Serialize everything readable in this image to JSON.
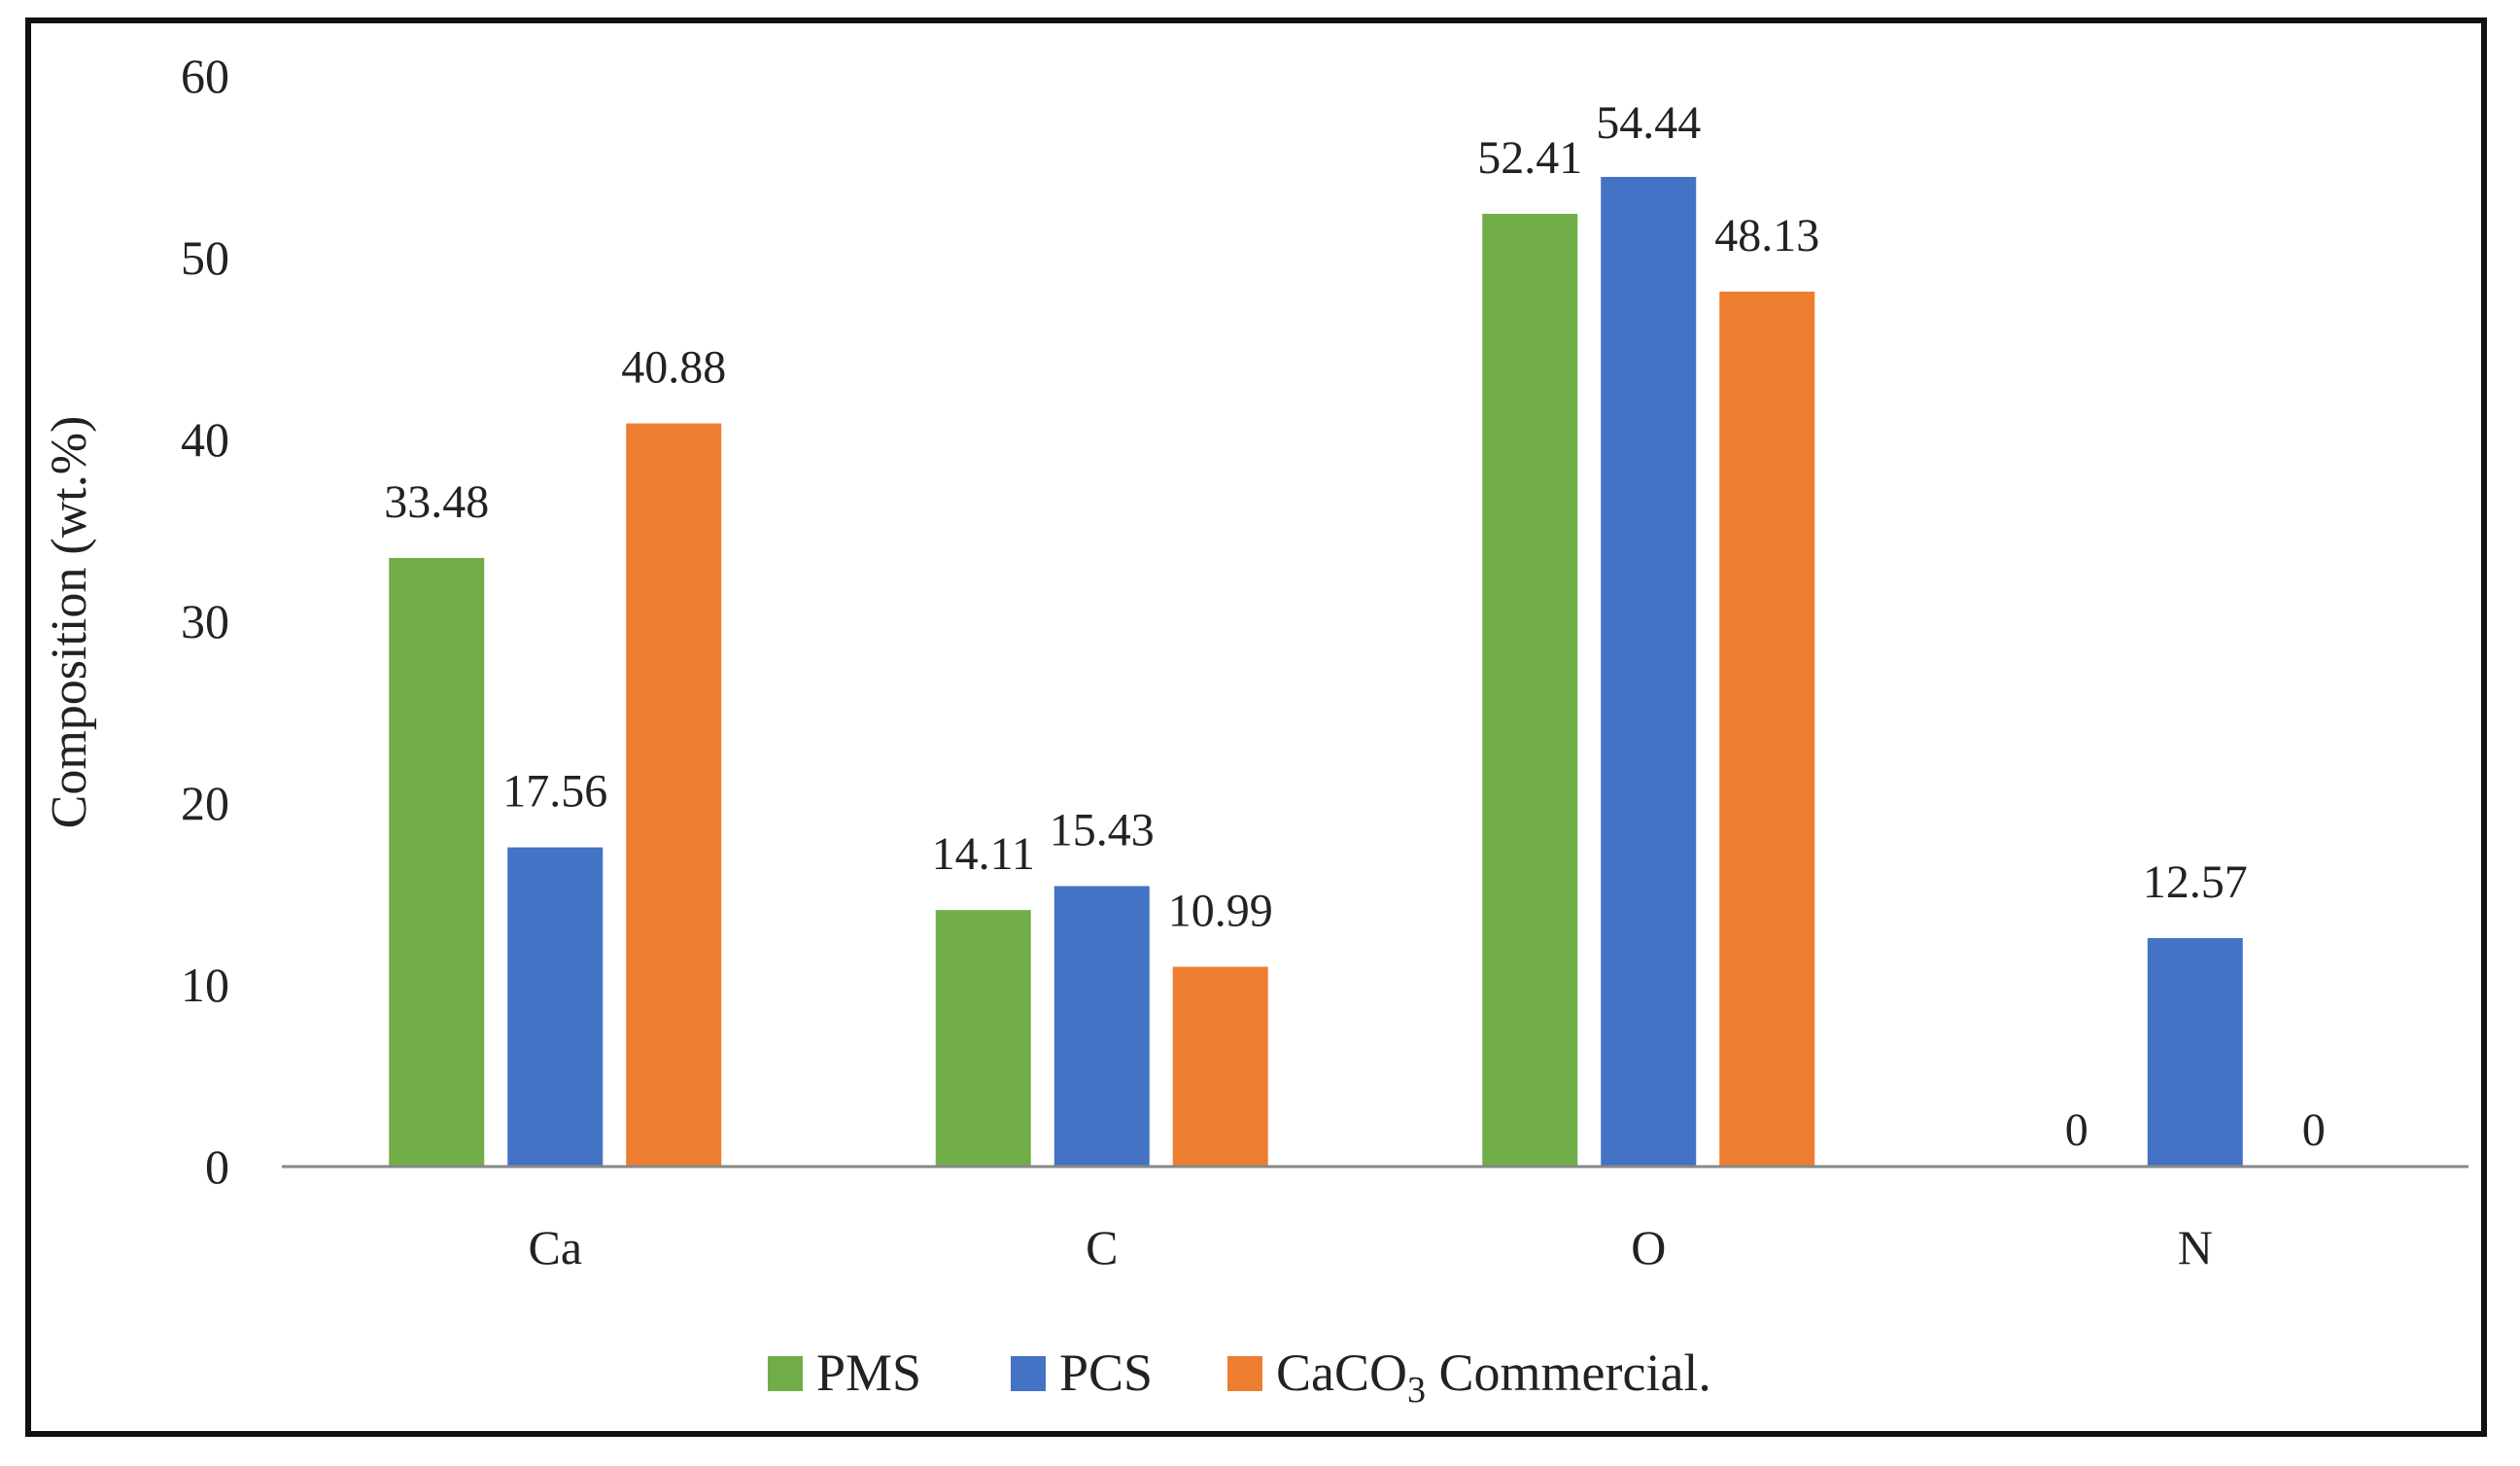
{
  "chart_data": {
    "type": "bar",
    "title": "",
    "xlabel": "",
    "ylabel": "Composition  (wt.%)",
    "ylim": [
      0,
      60
    ],
    "yticks": [
      0,
      10,
      20,
      30,
      40,
      50,
      60
    ],
    "grid": false,
    "legend_position": "bottom",
    "categories": [
      "Ca",
      "C",
      "O",
      "N"
    ],
    "series": [
      {
        "name": "PMS",
        "color": "#70AD47",
        "values": [
          33.48,
          14.11,
          52.41,
          0
        ],
        "labels": [
          "33.48",
          "14.11",
          "52.41",
          "0"
        ]
      },
      {
        "name": "PCS",
        "color": "#4472C4",
        "values": [
          17.56,
          15.43,
          54.44,
          12.57
        ],
        "labels": [
          "17.56",
          "15.43",
          "54.44",
          "12.57"
        ]
      },
      {
        "name": "CaCO3 Commercial.",
        "color": "#ED7D31",
        "values": [
          40.88,
          10.99,
          48.13,
          0
        ],
        "labels": [
          "40.88",
          "10.99",
          "48.13",
          "0"
        ]
      }
    ],
    "legend": {
      "entries": [
        {
          "text": "PMS"
        },
        {
          "text": "PCS"
        },
        {
          "text_parts": [
            "CaCO",
            "3",
            " Commercial."
          ]
        }
      ]
    }
  }
}
